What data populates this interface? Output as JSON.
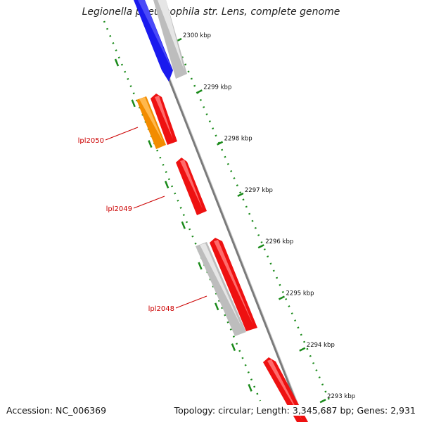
{
  "header": {
    "title": "Legionella pneumophila str. Lens, complete genome"
  },
  "footer": {
    "accession": "Accession: NC_006369",
    "summary": "Topology: circular; Length: 3,345,687 bp; Genes: 2,931"
  },
  "map": {
    "ticks": [
      {
        "label": "2300 kbp",
        "kbp": 2300
      },
      {
        "label": "2299 kbp",
        "kbp": 2299
      },
      {
        "label": "2298 kbp",
        "kbp": 2298
      },
      {
        "label": "2297 kbp",
        "kbp": 2297
      },
      {
        "label": "2296 kbp",
        "kbp": 2296
      },
      {
        "label": "2295 kbp",
        "kbp": 2295
      },
      {
        "label": "2294 kbp",
        "kbp": 2294
      },
      {
        "label": "2293 kbp",
        "kbp": 2293
      }
    ],
    "gene_labels": [
      {
        "label": "lpl2050"
      },
      {
        "label": "lpl2049"
      },
      {
        "label": "lpl2048"
      }
    ],
    "colors": {
      "backbone": "#7a7a7a",
      "forward_cds": "#ee1111",
      "other_gene": "#f28c00",
      "rna_or_other": "#1a1aee",
      "grey_feature": "#bdbdbd",
      "tick": "#1a8a1a",
      "gene_label": "#cc0000"
    }
  }
}
